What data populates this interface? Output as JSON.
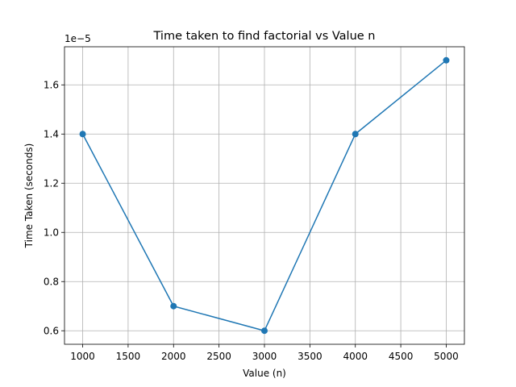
{
  "chart_data": {
    "type": "line",
    "title": "Time taken to find factorial vs Value  n",
    "xlabel": "Value (n)",
    "ylabel": "Time Taken (seconds)",
    "y_offset_label": "1e−5",
    "x": [
      1000,
      2000,
      3000,
      4000,
      5000
    ],
    "series": [
      {
        "values": [
          1.4,
          0.7,
          0.6,
          1.4,
          1.7
        ],
        "color": "#1f77b4"
      }
    ],
    "xlim": [
      800,
      5200
    ],
    "ylim": [
      0.545,
      1.755
    ],
    "x_ticks": [
      1000,
      1500,
      2000,
      2500,
      3000,
      3500,
      4000,
      4500,
      5000
    ],
    "x_tick_labels": [
      "1000",
      "1500",
      "2000",
      "2500",
      "3000",
      "3500",
      "4000",
      "4500",
      "5000"
    ],
    "y_ticks": [
      0.6,
      0.8,
      1.0,
      1.2,
      1.4,
      1.6
    ],
    "y_tick_labels": [
      "0.6",
      "0.8",
      "1.0",
      "1.2",
      "1.4",
      "1.6"
    ],
    "grid": true,
    "marker": "circle"
  }
}
